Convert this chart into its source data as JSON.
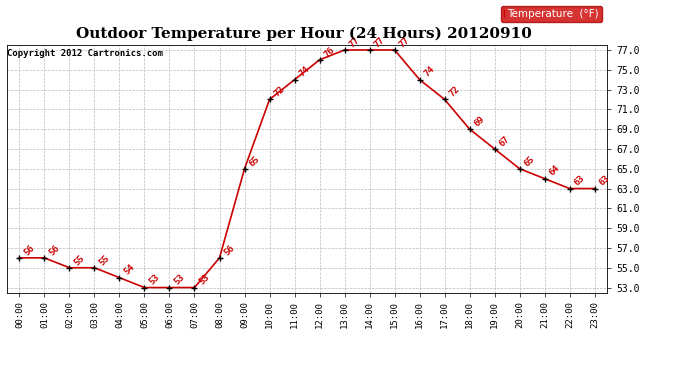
{
  "title": "Outdoor Temperature per Hour (24 Hours) 20120910",
  "copyright": "Copyright 2012 Cartronics.com",
  "legend_label": "Temperature  (°F)",
  "hours": [
    "00:00",
    "01:00",
    "02:00",
    "03:00",
    "04:00",
    "05:00",
    "06:00",
    "07:00",
    "08:00",
    "09:00",
    "10:00",
    "11:00",
    "12:00",
    "13:00",
    "14:00",
    "15:00",
    "16:00",
    "17:00",
    "18:00",
    "19:00",
    "20:00",
    "21:00",
    "22:00",
    "23:00"
  ],
  "temps": [
    56,
    56,
    55,
    55,
    54,
    53,
    53,
    53,
    56,
    65,
    72,
    74,
    76,
    77,
    77,
    77,
    74,
    72,
    69,
    67,
    65,
    64,
    63,
    63
  ],
  "line_color": "#cc0000",
  "marker_color": "#000000",
  "label_color": "#cc0000",
  "bg_color": "#ffffff",
  "grid_color": "#bbbbbb",
  "ylim_min": 53.0,
  "ylim_max": 77.0,
  "ytick_min": 53.0,
  "ytick_max": 77.0,
  "ytick_step": 2.0,
  "title_fontsize": 11,
  "legend_bg": "#cc0000",
  "legend_fg": "#ffffff"
}
